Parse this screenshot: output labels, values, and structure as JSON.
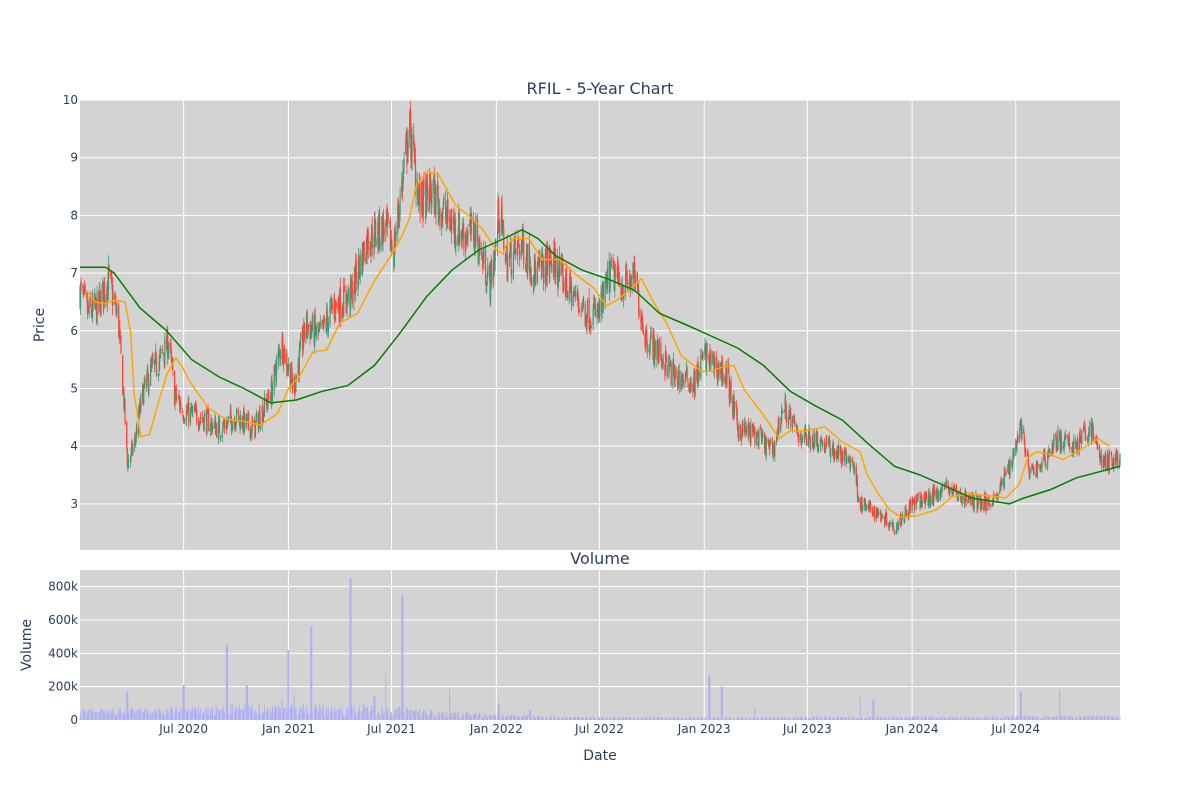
{
  "chart_data": {
    "type": "candlestick",
    "title": "RFIL - 5-Year Chart",
    "panels": [
      {
        "name": "price",
        "ylabel": "Price",
        "ylim": [
          2.2,
          10
        ],
        "yticks": [
          3,
          4,
          5,
          6,
          7,
          8,
          9,
          10
        ],
        "colors": {
          "up": "#3d9970",
          "down": "#ff4136",
          "ma_short": "#ffa500",
          "ma_long": "#008000",
          "background": "#d3d3d3"
        },
        "anchors": [
          [
            "2020-01-01",
            6.7
          ],
          [
            "2020-01-15",
            6.3
          ],
          [
            "2020-02-01",
            6.4
          ],
          [
            "2020-02-20",
            6.9
          ],
          [
            "2020-03-08",
            6.2
          ],
          [
            "2020-03-18",
            4.8
          ],
          [
            "2020-03-24",
            3.7
          ],
          [
            "2020-04-05",
            4.0
          ],
          [
            "2020-04-20",
            4.9
          ],
          [
            "2020-05-05",
            5.3
          ],
          [
            "2020-05-20",
            5.5
          ],
          [
            "2020-06-05",
            5.8
          ],
          [
            "2020-06-15",
            4.9
          ],
          [
            "2020-07-01",
            4.6
          ],
          [
            "2020-08-01",
            4.5
          ],
          [
            "2020-09-01",
            4.3
          ],
          [
            "2020-10-01",
            4.5
          ],
          [
            "2020-11-01",
            4.3
          ],
          [
            "2020-12-01",
            4.9
          ],
          [
            "2020-12-20",
            5.8
          ],
          [
            "2021-01-10",
            5.0
          ],
          [
            "2021-02-01",
            6.1
          ],
          [
            "2021-02-25",
            5.9
          ],
          [
            "2021-03-20",
            6.4
          ],
          [
            "2021-04-20",
            6.6
          ],
          [
            "2021-05-20",
            7.6
          ],
          [
            "2021-06-20",
            7.8
          ],
          [
            "2021-07-05",
            7.4
          ],
          [
            "2021-07-20",
            8.6
          ],
          [
            "2021-08-01",
            9.5
          ],
          [
            "2021-08-20",
            8.2
          ],
          [
            "2021-09-10",
            8.4
          ],
          [
            "2021-10-10",
            7.9
          ],
          [
            "2021-11-01",
            7.7
          ],
          [
            "2021-11-25",
            7.7
          ],
          [
            "2021-12-20",
            6.8
          ],
          [
            "2022-01-01",
            7.5
          ],
          [
            "2022-01-05",
            8.1
          ],
          [
            "2022-01-20",
            7.2
          ],
          [
            "2022-02-15",
            7.5
          ],
          [
            "2022-03-10",
            7.0
          ],
          [
            "2022-04-10",
            7.2
          ],
          [
            "2022-05-10",
            6.7
          ],
          [
            "2022-06-10",
            6.3
          ],
          [
            "2022-07-01",
            6.3
          ],
          [
            "2022-07-20",
            7.0
          ],
          [
            "2022-08-10",
            6.8
          ],
          [
            "2022-09-01",
            6.9
          ],
          [
            "2022-09-20",
            5.9
          ],
          [
            "2022-10-15",
            5.6
          ],
          [
            "2022-11-10",
            5.2
          ],
          [
            "2022-12-15",
            5.1
          ],
          [
            "2023-01-01",
            5.6
          ],
          [
            "2023-01-20",
            5.4
          ],
          [
            "2023-02-10",
            5.2
          ],
          [
            "2023-03-01",
            4.3
          ],
          [
            "2023-04-01",
            4.2
          ],
          [
            "2023-05-01",
            3.9
          ],
          [
            "2023-05-20",
            4.7
          ],
          [
            "2023-06-15",
            4.2
          ],
          [
            "2023-07-20",
            4.1
          ],
          [
            "2023-08-20",
            3.9
          ],
          [
            "2023-09-20",
            3.7
          ],
          [
            "2023-10-01",
            3.0
          ],
          [
            "2023-10-20",
            2.9
          ],
          [
            "2023-11-10",
            2.8
          ],
          [
            "2023-12-01",
            2.6
          ],
          [
            "2024-01-01",
            3.0
          ],
          [
            "2024-02-01",
            3.1
          ],
          [
            "2024-03-01",
            3.3
          ],
          [
            "2024-04-01",
            3.1
          ],
          [
            "2024-05-10",
            3.0
          ],
          [
            "2024-06-01",
            3.2
          ],
          [
            "2024-06-25",
            3.8
          ],
          [
            "2024-07-10",
            4.4
          ],
          [
            "2024-07-25",
            3.5
          ],
          [
            "2024-08-15",
            3.7
          ],
          [
            "2024-09-10",
            4.1
          ],
          [
            "2024-10-10",
            4.0
          ],
          [
            "2024-11-10",
            4.3
          ],
          [
            "2024-12-01",
            3.7
          ],
          [
            "2024-12-31",
            3.8
          ]
        ],
        "moving_averages": [
          {
            "color": "#ffa500",
            "window_points": 3
          },
          {
            "color": "#008000",
            "points": [
              [
                "2020-01-01",
                7.1
              ],
              [
                "2020-02-15",
                7.1
              ],
              [
                "2020-03-01",
                7.0
              ],
              [
                "2020-04-15",
                6.4
              ],
              [
                "2020-06-01",
                6.0
              ],
              [
                "2020-07-15",
                5.5
              ],
              [
                "2020-09-01",
                5.2
              ],
              [
                "2020-10-15",
                5.0
              ],
              [
                "2020-12-01",
                4.75
              ],
              [
                "2021-01-15",
                4.8
              ],
              [
                "2021-03-01",
                4.95
              ],
              [
                "2021-04-15",
                5.05
              ],
              [
                "2021-06-01",
                5.4
              ],
              [
                "2021-07-15",
                5.95
              ],
              [
                "2021-09-01",
                6.6
              ],
              [
                "2021-10-15",
                7.05
              ],
              [
                "2021-12-01",
                7.4
              ],
              [
                "2022-01-15",
                7.6
              ],
              [
                "2022-02-15",
                7.75
              ],
              [
                "2022-03-15",
                7.6
              ],
              [
                "2022-04-15",
                7.3
              ],
              [
                "2022-06-01",
                7.05
              ],
              [
                "2022-07-15",
                6.9
              ],
              [
                "2022-09-01",
                6.7
              ],
              [
                "2022-10-15",
                6.3
              ],
              [
                "2022-12-01",
                6.1
              ],
              [
                "2023-01-15",
                5.9
              ],
              [
                "2023-03-01",
                5.7
              ],
              [
                "2023-04-15",
                5.4
              ],
              [
                "2023-06-01",
                4.95
              ],
              [
                "2023-07-15",
                4.7
              ],
              [
                "2023-09-01",
                4.45
              ],
              [
                "2023-10-15",
                4.05
              ],
              [
                "2023-12-01",
                3.65
              ],
              [
                "2024-01-15",
                3.5
              ],
              [
                "2024-03-01",
                3.3
              ],
              [
                "2024-04-15",
                3.1
              ],
              [
                "2024-06-01",
                3.03
              ],
              [
                "2024-06-20",
                3.0
              ],
              [
                "2024-07-15",
                3.1
              ],
              [
                "2024-09-01",
                3.25
              ],
              [
                "2024-10-15",
                3.45
              ],
              [
                "2024-12-31",
                3.65
              ]
            ]
          }
        ]
      },
      {
        "name": "volume",
        "title": "Volume",
        "ylabel": "Volume",
        "ylim": [
          0,
          900000
        ],
        "yticks": [
          0,
          200000,
          400000,
          600000,
          800000
        ],
        "ytick_labels": [
          "0",
          "200k",
          "400k",
          "600k",
          "800k"
        ],
        "bar_color": "#b0b0f0",
        "baseline": [
          [
            "2020-01-01",
            40000
          ],
          [
            "2020-06-01",
            45000
          ],
          [
            "2020-12-01",
            60000
          ],
          [
            "2021-06-01",
            55000
          ],
          [
            "2021-12-01",
            25000
          ],
          [
            "2022-06-01",
            12000
          ],
          [
            "2022-12-01",
            12000
          ],
          [
            "2023-06-01",
            12000
          ],
          [
            "2023-12-01",
            14000
          ],
          [
            "2024-06-01",
            15000
          ],
          [
            "2024-12-31",
            18000
          ]
        ],
        "spikes": [
          [
            "2020-03-24",
            170000
          ],
          [
            "2020-07-01",
            210000
          ],
          [
            "2020-09-15",
            450000
          ],
          [
            "2020-10-20",
            210000
          ],
          [
            "2020-12-20",
            130000
          ],
          [
            "2021-01-01",
            420000
          ],
          [
            "2021-01-10",
            150000
          ],
          [
            "2021-02-10",
            560000
          ],
          [
            "2021-04-20",
            850000
          ],
          [
            "2021-06-01",
            140000
          ],
          [
            "2021-06-20",
            280000
          ],
          [
            "2021-07-20",
            750000
          ],
          [
            "2021-10-10",
            190000
          ],
          [
            "2022-01-05",
            100000
          ],
          [
            "2022-03-01",
            60000
          ],
          [
            "2023-01-10",
            270000
          ],
          [
            "2023-02-01",
            200000
          ],
          [
            "2023-04-01",
            70000
          ],
          [
            "2023-10-01",
            140000
          ],
          [
            "2023-10-25",
            120000
          ],
          [
            "2024-07-10",
            170000
          ],
          [
            "2024-09-15",
            180000
          ]
        ]
      }
    ],
    "xlabel": "Date",
    "xlim": [
      "2020-01-01",
      "2024-12-31"
    ],
    "xticks": [
      "2020-07-01",
      "2021-01-01",
      "2021-07-01",
      "2022-01-01",
      "2022-07-01",
      "2023-01-01",
      "2023-07-01",
      "2024-01-01",
      "2024-07-01"
    ],
    "xtick_labels": [
      "Jul 2020",
      "Jan 2021",
      "Jul 2021",
      "Jan 2022",
      "Jul 2022",
      "Jan 2023",
      "Jul 2023",
      "Jan 2024",
      "Jul 2024"
    ],
    "grid": true
  }
}
